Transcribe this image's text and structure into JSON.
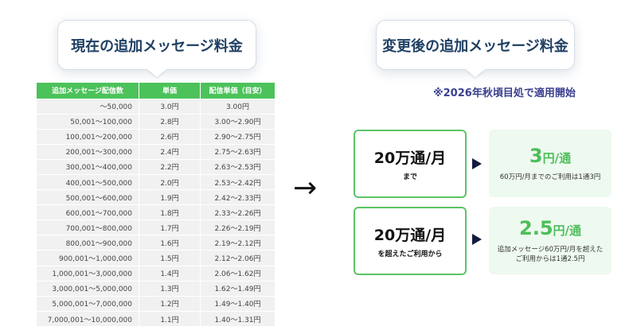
{
  "current_title": "現在の追加メッセージ料金",
  "new_title": "変更後の追加メッセージ料金",
  "note": "※2026年秋頃目処で適用開始",
  "table": {
    "headers": [
      "追加メッセージ配信数",
      "単価",
      "配信単価（目安）"
    ],
    "rows": [
      [
        "〜50,000",
        "3.0円",
        "3.00円"
      ],
      [
        "50,001〜100,000",
        "2.8円",
        "3.00〜2.90円"
      ],
      [
        "100,001〜200,000",
        "2.6円",
        "2.90〜2.75円"
      ],
      [
        "200,001〜300,000",
        "2.4円",
        "2.75〜2.63円"
      ],
      [
        "300,001〜400,000",
        "2.2円",
        "2.63〜2.53円"
      ],
      [
        "400,001〜500,000",
        "2.0円",
        "2.53〜2.42円"
      ],
      [
        "500,001〜600,000",
        "1.9円",
        "2.42〜2.33円"
      ],
      [
        "600,001〜700,000",
        "1.8円",
        "2.33〜2.26円"
      ],
      [
        "700,001〜800,000",
        "1.7円",
        "2.26〜2.19円"
      ],
      [
        "800,001〜900,000",
        "1.6円",
        "2.19〜2.12円"
      ],
      [
        "900,001〜1,000,000",
        "1.5円",
        "2.12〜2.06円"
      ],
      [
        "1,000,001〜3,000,000",
        "1.4円",
        "2.06〜1.62円"
      ],
      [
        "3,000,001〜5,000,000",
        "1.3円",
        "1.62〜1.49円"
      ],
      [
        "5,000,001〜7,000,000",
        "1.2円",
        "1.49〜1.40円"
      ],
      [
        "7,000,001〜10,000,000",
        "1.1円",
        "1.40〜1.31円"
      ]
    ]
  },
  "arrow": "→",
  "tiers": [
    {
      "volume": "20万通/月",
      "condition": "まで",
      "price": "3",
      "unit": "円/通",
      "desc": "60万円/月までのご利用は1通3円"
    },
    {
      "volume": "20万通/月",
      "condition": "を超えたご利用から",
      "price": "2.5",
      "unit": "円/通",
      "desc": "追加メッセージ60万円/月を超えたご利用からは1通2.5円"
    }
  ],
  "colors": {
    "accent_green": "#4cc25a",
    "title_navy": "#1f3f63",
    "note_purple": "#3a3f8f"
  }
}
